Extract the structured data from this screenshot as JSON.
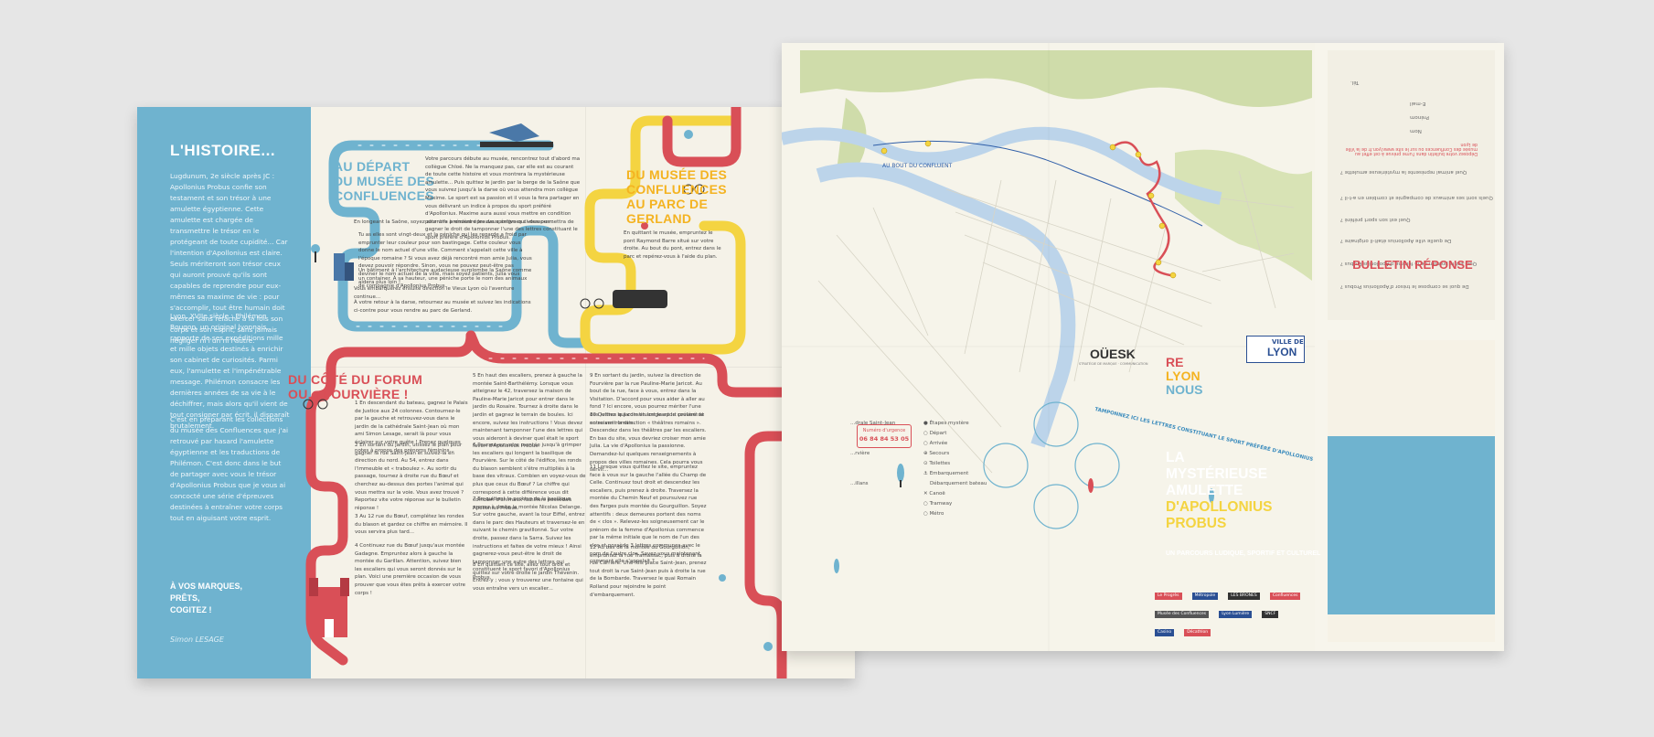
{
  "left_page": {
    "history": {
      "title": "L'HISTOIRE...",
      "p1": "Lugdunum, 2e siècle après JC : Apollonius Probus confie son testament et son trésor à une amulette égyptienne. Cette amulette est chargée de transmettre le trésor en le protégeant de toute cupidité... Car l'intention d'Apollonius est claire. Seuls mériteront son trésor ceux qui auront prouvé qu'ils sont capables de reprendre pour eux-mêmes sa maxime de vie : pour s'accomplir, tout être humain doit exercer sans relâche à la fois son corps et son esprit, sans jamais négliger ni l'un ni l'autre.",
      "p2": "Lyon, XVIIe siècle : Philémon Bougon, un original lyonnais, rapporte de ses expéditions mille et mille objets destinés à enrichir son cabinet de curiosités. Parmi eux, l'amulette et l'impénétrable message. Philémon consacre les dernières années de sa vie à le déchiffrer, mais alors qu'il vient de tout consigner par écrit, il disparaît brutalement.",
      "p3": "C'est en préparant les collections du musée des Confluences que j'ai retrouvé par hasard l'amulette égyptienne et les traductions de Philémon. C'est donc dans le but de partager avec vous le trésor d'Apollonius Probus que je vous ai concocté une série d'épreuves destinées à entraîner votre corps tout en aiguisant votre esprit.",
      "go": [
        "À VOS MARQUES,",
        "PRÊTS,",
        "COGITEZ !"
      ],
      "signature": "Simon LESAGE"
    },
    "section1": {
      "title": [
        "AU DÉPART",
        "DU MUSÉE DES",
        "CONFLUENCES"
      ],
      "text1": "Votre parcours débute au musée, rencontrez tout d'abord ma collègue Chloé. Ne la manquez pas, car elle est au courant de toute cette histoire et vous montrera la mystérieuse amulette... Puis quittez le jardin par la berge de la Saône que vous suivrez jusqu'à la darse où vous attendra mon collègue Maxime. Le sport est sa passion et il vous la fera partager en vous délivrant un indice à propos du sport préféré d'Apollonius. Maxime aura aussi vous mettre en condition pour une première épreuve sportive qui vous permettra de gagner le droit de tamponner l'une des lettres constituant le sport préféré d'Apollonius Probus.",
      "text2": "En longeant la Saône, soyez attentifs à résoudre les deux énigmes ci-dessous :",
      "text3": "Tu as elles sont vingt-deux et la péniche qui les regarde a froid par emprunter leur couleur pour son bastingage. Cette couleur vous donne le nom actuel d'une ville. Comment s'appelait cette ville à l'époque romaine ? Si vous avez déjà rencontré mon amie Julia, vous devez pouvoir répondre. Sinon, vous ne pouvez peut-être pas deviner le nom actuel de la ville, mais soyez patients, Julia vous aidera plus loin !",
      "text4": "Un bâtiment à l'architecture audacieuse surplombe la Saône comme un container. À sa hauteur, une péniche porte le nom des animaux de compagnie d'Apollonius Probus.",
      "text5": "Vous embarquerez ensuite direction le Vieux Lyon où l'aventure continue...",
      "text6": "À votre retour à la darse, retournez au musée et suivez les indications ci-contre pour vous rendre au parc de Gerland."
    },
    "section2": {
      "title": [
        "DU MUSÉE DES",
        "CONFLUENCES",
        "AU PARC DE",
        "GERLAND"
      ],
      "text": "En quittant le musée, empruntez le pont Raymond Barre situé sur votre droite. Au bout du pont, entrez dans le parc et repérez-vous à l'aide du plan."
    },
    "section3": {
      "title": [
        "DU CÔTÉ DU FORUM",
        "OU... FOURVIÈRE !"
      ],
      "steps": [
        "1 En descendant du bateau, gagnez le Palais de Justice aux 24 colonnes. Contournez-le par la gauche et retrouvez-vous dans le jardin de la cathédrale Saint-Jean où mon ami Simon Lesage, serait là pour vous éclairer sur votre quête ! Prenez quelques notes à propos des prénoms féminins...",
        "2 En sortant du jardin, utilisez le plan pour gagner la rue Saint-Jean et suivez-la en direction du nord. Au 54, entrez dans l'immeuble et « traboulez ». Au sortir du passage, tournez à droite rue du Bœuf et cherchez au-dessus des portes l'animal qui vous mettra sur la voie. Vous avez trouvé ? Reportez vite votre réponse sur le bulletin réponse !",
        "3 Au 12 rue du Bœuf, complétez les rondes du blason et gardez ce chiffre en mémoire. Il vous servira plus tard...",
        "4 Continuez rue du Bœuf jusqu'aux montée Gadagne. Empruntez alors à gauche la montée du Garillan. Attention, suivez bien les escaliers qui vous seront donnés sur le plan. Voici une première occasion de vous prouver que vous êtes prêts à exercer votre corps !",
        "5 En haut des escaliers, prenez à gauche la montée Saint-Barthélémy. Lorsque vous atteignez le 42, traversez la maison de Pauline-Marie Jaricot pour entrer dans le jardin du Rosaire. Tournez à droite dans le jardin et gagnez le terrain de boules. Ici encore, suivez les instructions ! Vous devez maintenant tamponner l'une des lettres qui vous aideront à deviner quel était le sport favori d'Apollonius Probus.",
        "6 Poursuivez votre montée jusqu'à grimper les escaliers qui longent la basilique de Fourvière. Sur le côté de l'édifice, les ronds du blason semblent s'être multipliés à la base des vitraux. Combien en voyez-vous de plus que ceux du Bœuf ? Le chiffre qui correspond à cette différence vous dit combien d'animaux familiers possédait Apollonius Probus.",
        "7 En quittant le parking de la basilique, prenez à droite la montée Nicolas Delange. Sur votre gauche, avant la tour Eiffel, entrez dans le parc des Hauteurs et traversez-le en suivant le chemin gravillonné. Sur votre droite, passez dans la Sarra. Suivez les instructions et faites de votre mieux ! Ainsi gagnerez-vous peut-être le droit de tamponner une autre des lettres qui constituent le sport favori d'Apollonius Probus.",
        "8 En quittant ce site, allez tout droit et quittez sur votre droite le jardin Thévenin. Entrez-y ; vous y trouverez une fontaine qui vous entraîne vers un escalier...",
        "9 En sortant du jardin, suivez la direction de Fourvière par la rue Pauline-Marie Jaricot. Au bout de la rue, face à vous, entrez dans la Visitation. D'accord pour vous aider à aller au fond ? Ici encore, vous pourrez mériter l'une des lettres qui constituent le sport préféré de notre ami romain.",
        "10 Quittez le jardin en longeant le couvent et en suivant la direction « théâtres romains ». Descendez dans les théâtres par les escaliers. En bas du site, vous devriez croiser mon amie Julia. La vie d'Apollonius la passionne. Demandez-lui quelques renseignements à propos des villes romaines. Cela pourra vous servir...",
        "11 Lorsque vous quittez le site, empruntez face à vous sur la gauche l'allée du Champ de Celle. Continuez tout droit et descendez les escaliers, puis prenez à droite. Traversez la montée du Chemin Neuf et poursuivez rue des Farges puis montée du Gourguillon. Soyez attentifs : deux demeures portent des noms de « clos ». Relevez-les soigneusement car le prénom de la femme d'Apollonius commence par la même initiale que le nom de l'un des clos et possède 3 lettres communes avec le nom de l'autre clos. Savez-vous maintenant comment elle s'appelait ?",
        "12 Au bas de la montée du Gourguillon, empruntez la rue Tramassac, puis à droite la rue Carrière. Une fois place Saint-Jean, prenez tout droit la rue Saint-Jean puis à droite la rue de la Bombarde. Traversez le quai Romain Rolland pour rejoindre le point d'embarquement."
      ]
    }
  },
  "right_page": {
    "map_labels": [
      "AU BOUT DU CONFLUENT",
      "Pont Raymond Barre",
      "Parc de Gerland"
    ],
    "urgence": {
      "label": "Numéro d'urgence",
      "number": "06 84 84 53 05"
    },
    "legend": [
      "Étapes mystère",
      "Départ",
      "Arrivée",
      "Secours",
      "Toilettes",
      "Embarquement",
      "Débarquement bateau",
      "Canoë",
      "Tramway",
      "Métro"
    ],
    "legend_cut": [
      "...drale Saint-Jean",
      "...rvière",
      "...illans"
    ],
    "tampon": "TAMPONNEZ ICI LES LETTRES CONSTITUANT LE SPORT PRÉFÉRÉ D'APOLLONIUS",
    "brand": {
      "name": "OÜESK",
      "tagline": "STRATÉGIE DE MARQUE · COMMUNICATION"
    },
    "bulletin": {
      "title": "BULLETIN RÉPONSE",
      "questions": [
        "De quoi se compose le trésor d'Apollonius Probus ?",
        "Quel est le prénom de la femme d'Apollonius Probus ?",
        "De quelle ville Apollonius était-il originaire ?",
        "Quel est son sport préféré ?",
        "Quels sont ses animaux de compagnie et combien en a-t-il ?",
        "Quel animal représente la mystérieuse amulette ?"
      ],
      "fields": [
        "Nom",
        "Prénom",
        "E-mail",
        "Tél."
      ],
      "note": "Déposez votre bulletin dans l'urne prévue à cet effet au musée des Confluences ou sur le site www.lyon.fr de la Ville de Lyon"
    },
    "cover": {
      "ville_small": "VILLE DE",
      "ville_big": "LYON",
      "slogan": [
        "RE",
        "LYON",
        "NOUS"
      ],
      "title_white": [
        "LA",
        "MYSTÉRIEUSE",
        "AMULETTE"
      ],
      "title_yellow": [
        "D'APOLLONIUS",
        "PROBUS"
      ],
      "subtitle": "UN PARCOURS LUDIQUE, SPORTIF ET CULTUREL",
      "logos": [
        "Le Progrès",
        "Métropole",
        "LES BRONES",
        "Confluences",
        "Musée des Confluences",
        "Lyon Lumière",
        "SNCF",
        "Casino",
        "Décathlon"
      ]
    }
  },
  "colors": {
    "blue": "#6fb3cf",
    "red": "#d94f57",
    "yellow": "#f4d441",
    "paper": "#f5f2e8",
    "map_green": "#cfdcaa",
    "map_water": "#cfe0ef"
  }
}
